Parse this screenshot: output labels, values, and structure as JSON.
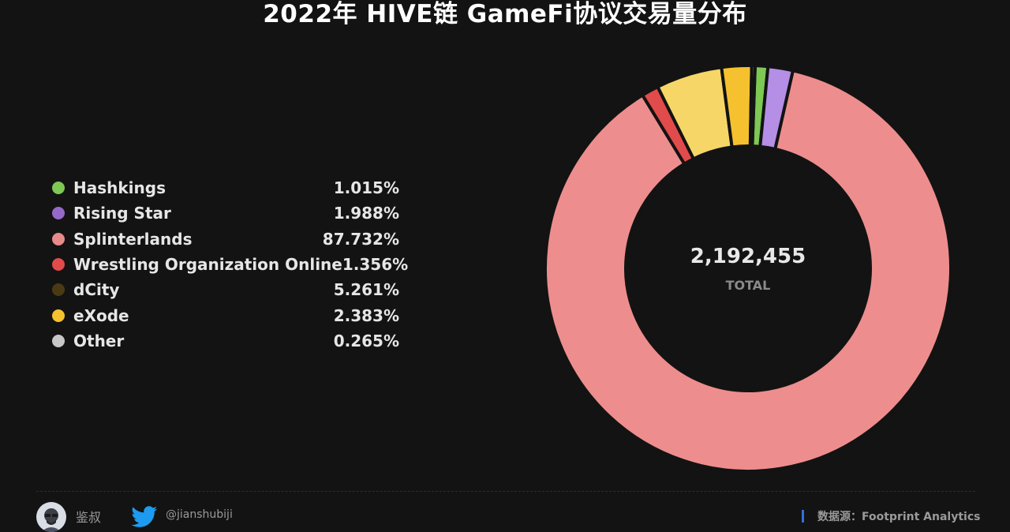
{
  "title": "2022年 HIVE链 GameFi协议交易量分布",
  "chart_data": {
    "type": "pie",
    "title": "2022年 HIVE链 GameFi协议交易量分布",
    "total": "2,192,455",
    "total_label": "TOTAL",
    "legend_position": "left",
    "slices": [
      {
        "name": "Hashkings",
        "percent_label": "1.015%",
        "value": 1.015,
        "color": "#7ec854"
      },
      {
        "name": "Rising Star",
        "percent_label": "1.988%",
        "value": 1.988,
        "color": "#b58ee6"
      },
      {
        "name": "Splinterlands",
        "percent_label": "87.732%",
        "value": 87.732,
        "color": "#ee8d8d"
      },
      {
        "name": "Wrestling Organization Online",
        "percent_label": "1.356%",
        "value": 1.356,
        "color": "#e24b4b"
      },
      {
        "name": "dCity",
        "percent_label": "5.261%",
        "value": 5.261,
        "color": "#f7d668"
      },
      {
        "name": "eXode",
        "percent_label": "2.383%",
        "value": 2.383,
        "color": "#f5c12e"
      },
      {
        "name": "Other",
        "percent_label": "0.265%",
        "value": 0.265,
        "color": "#c7c7c7"
      }
    ],
    "legend_dot_colors": [
      "#7ec854",
      "#9669c9",
      "#e98a8a",
      "#e24b4b",
      "#4a3a14",
      "#f5c12e",
      "#c7c7c7"
    ]
  },
  "footer": {
    "author": "鉴叔",
    "handle": "@jianshubiji",
    "source": "数据源：Footprint  Analytics"
  }
}
